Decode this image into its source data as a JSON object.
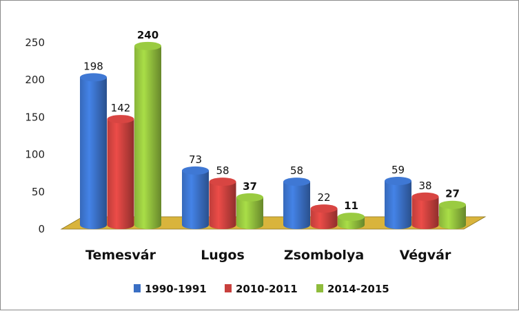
{
  "chart_data": {
    "type": "bar",
    "style": "3d-cylinder",
    "title": "",
    "xlabel": "",
    "ylabel": "",
    "ylim": [
      0,
      250
    ],
    "yticks": [
      0,
      50,
      100,
      150,
      200,
      250
    ],
    "categories": [
      "Temesvár",
      "Lugos",
      "Zsombolya",
      "Végvár"
    ],
    "series": [
      {
        "name": "1990-1991",
        "values": [
          198,
          73,
          58,
          59
        ],
        "color": "#3a6fc4",
        "label_bold": false
      },
      {
        "name": "2010-2011",
        "values": [
          142,
          58,
          22,
          38
        ],
        "color": "#c8403d",
        "label_bold": false
      },
      {
        "name": "2014-2015",
        "values": [
          240,
          37,
          11,
          27
        ],
        "color": "#8fbc3c",
        "label_bold": true
      }
    ],
    "legend_position": "bottom",
    "floor_color": "#d9b43c",
    "grid": false
  }
}
